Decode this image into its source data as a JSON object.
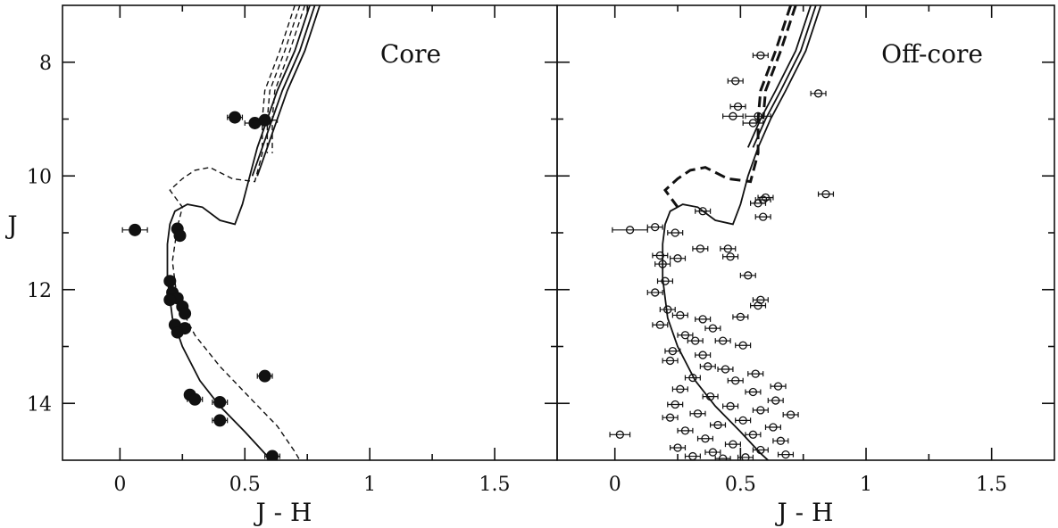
{
  "figure": {
    "y_axis_label": "J",
    "x_axis_label": "J - H",
    "x_ticks": [
      "0",
      "0.5",
      "1",
      "1.5"
    ],
    "y_ticks": [
      "8",
      "10",
      "12",
      "14"
    ]
  },
  "chart_data": [
    {
      "type": "scatter",
      "title": "Core",
      "xlabel": "J - H",
      "ylabel": "J",
      "xlim": [
        -0.23,
        1.75
      ],
      "ylim": [
        15,
        7
      ],
      "y_inverted": true,
      "grid": false,
      "marker": "filled-circle",
      "points": [
        {
          "x": 0.46,
          "y": 8.97,
          "xerr": 0.03
        },
        {
          "x": 0.54,
          "y": 9.07,
          "xerr": 0.04
        },
        {
          "x": 0.58,
          "y": 9.02,
          "xerr": 0.05
        },
        {
          "x": 0.06,
          "y": 10.95,
          "xerr": 0.05
        },
        {
          "x": 0.23,
          "y": 10.93,
          "xerr": 0.02
        },
        {
          "x": 0.24,
          "y": 11.05,
          "xerr": 0.02
        },
        {
          "x": 0.2,
          "y": 11.85,
          "xerr": 0.02
        },
        {
          "x": 0.21,
          "y": 12.05,
          "xerr": 0.02
        },
        {
          "x": 0.23,
          "y": 12.15,
          "xerr": 0.02
        },
        {
          "x": 0.2,
          "y": 12.18,
          "xerr": 0.02
        },
        {
          "x": 0.25,
          "y": 12.3,
          "xerr": 0.02
        },
        {
          "x": 0.26,
          "y": 12.42,
          "xerr": 0.02
        },
        {
          "x": 0.22,
          "y": 12.62,
          "xerr": 0.02
        },
        {
          "x": 0.26,
          "y": 12.68,
          "xerr": 0.02
        },
        {
          "x": 0.23,
          "y": 12.75,
          "xerr": 0.02
        },
        {
          "x": 0.58,
          "y": 13.52,
          "xerr": 0.03
        },
        {
          "x": 0.28,
          "y": 13.85,
          "xerr": 0.02
        },
        {
          "x": 0.3,
          "y": 13.93,
          "xerr": 0.03
        },
        {
          "x": 0.4,
          "y": 13.98,
          "xerr": 0.03
        },
        {
          "x": 0.4,
          "y": 14.3,
          "xerr": 0.03
        },
        {
          "x": 0.61,
          "y": 14.93,
          "xerr": 0.03
        }
      ],
      "isochrones": {
        "solid": [
          [
            [
              0.76,
              7.0
            ],
            [
              0.7,
              7.8
            ],
            [
              0.63,
              8.5
            ],
            [
              0.59,
              9.0
            ],
            [
              0.55,
              9.5
            ],
            [
              0.52,
              10.0
            ],
            [
              0.49,
              10.5
            ],
            [
              0.46,
              10.85
            ],
            [
              0.4,
              10.78
            ],
            [
              0.33,
              10.55
            ],
            [
              0.27,
              10.5
            ],
            [
              0.22,
              10.62
            ],
            [
              0.2,
              10.85
            ],
            [
              0.19,
              11.2
            ],
            [
              0.19,
              11.8
            ],
            [
              0.21,
              12.5
            ],
            [
              0.25,
              13.0
            ],
            [
              0.32,
              13.6
            ],
            [
              0.4,
              14.05
            ],
            [
              0.5,
              14.5
            ],
            [
              0.58,
              14.88
            ],
            [
              0.61,
              15.0
            ]
          ],
          [
            [
              0.78,
              7.0
            ],
            [
              0.72,
              7.8
            ],
            [
              0.65,
              8.5
            ],
            [
              0.61,
              9.0
            ],
            [
              0.57,
              9.5
            ],
            [
              0.53,
              10.0
            ]
          ],
          [
            [
              0.8,
              7.0
            ],
            [
              0.74,
              7.8
            ],
            [
              0.67,
              8.5
            ],
            [
              0.63,
              9.0
            ],
            [
              0.59,
              9.5
            ],
            [
              0.55,
              10.0
            ]
          ]
        ],
        "dashed": [
          [
            [
              0.7,
              7.0
            ],
            [
              0.64,
              7.8
            ],
            [
              0.58,
              8.5
            ],
            [
              0.57,
              9.0
            ],
            [
              0.57,
              9.6
            ],
            [
              0.54,
              10.1
            ],
            [
              0.45,
              10.05
            ],
            [
              0.36,
              9.85
            ],
            [
              0.3,
              9.9
            ],
            [
              0.25,
              10.05
            ],
            [
              0.2,
              10.25
            ],
            [
              0.25,
              10.55
            ],
            [
              0.23,
              10.9
            ],
            [
              0.21,
              11.5
            ],
            [
              0.23,
              12.2
            ],
            [
              0.3,
              12.8
            ],
            [
              0.4,
              13.35
            ],
            [
              0.52,
              13.9
            ],
            [
              0.63,
              14.4
            ],
            [
              0.7,
              14.85
            ],
            [
              0.72,
              15.0
            ]
          ],
          [
            [
              0.72,
              7.0
            ],
            [
              0.66,
              7.8
            ],
            [
              0.6,
              8.5
            ],
            [
              0.59,
              9.0
            ],
            [
              0.59,
              9.6
            ]
          ],
          [
            [
              0.74,
              7.0
            ],
            [
              0.68,
              7.8
            ],
            [
              0.62,
              8.5
            ],
            [
              0.61,
              9.0
            ],
            [
              0.61,
              9.6
            ]
          ]
        ]
      }
    },
    {
      "type": "scatter",
      "title": "Off-core",
      "xlabel": "J - H",
      "ylabel": "J",
      "xlim": [
        -0.23,
        1.75
      ],
      "ylim": [
        15,
        7
      ],
      "y_inverted": true,
      "grid": false,
      "marker": "open-circle",
      "points": [
        {
          "x": 0.58,
          "y": 7.88,
          "xerr": 0.03
        },
        {
          "x": 0.48,
          "y": 8.33,
          "xerr": 0.03
        },
        {
          "x": 0.81,
          "y": 8.55,
          "xerr": 0.03
        },
        {
          "x": 0.49,
          "y": 8.78,
          "xerr": 0.03
        },
        {
          "x": 0.47,
          "y": 8.95,
          "xerr": 0.04
        },
        {
          "x": 0.57,
          "y": 8.95,
          "xerr": 0.05
        },
        {
          "x": 0.55,
          "y": 9.07,
          "xerr": 0.04
        },
        {
          "x": 0.84,
          "y": 10.32,
          "xerr": 0.03
        },
        {
          "x": 0.6,
          "y": 10.38,
          "xerr": 0.03
        },
        {
          "x": 0.59,
          "y": 10.42,
          "xerr": 0.03
        },
        {
          "x": 0.57,
          "y": 10.48,
          "xerr": 0.03
        },
        {
          "x": 0.35,
          "y": 10.62,
          "xerr": 0.03
        },
        {
          "x": 0.59,
          "y": 10.72,
          "xerr": 0.03
        },
        {
          "x": 0.06,
          "y": 10.95,
          "xerr": 0.07
        },
        {
          "x": 0.16,
          "y": 10.9,
          "xerr": 0.03
        },
        {
          "x": 0.24,
          "y": 11.0,
          "xerr": 0.03
        },
        {
          "x": 0.34,
          "y": 11.28,
          "xerr": 0.03
        },
        {
          "x": 0.45,
          "y": 11.28,
          "xerr": 0.03
        },
        {
          "x": 0.46,
          "y": 11.42,
          "xerr": 0.03
        },
        {
          "x": 0.18,
          "y": 11.4,
          "xerr": 0.03
        },
        {
          "x": 0.25,
          "y": 11.45,
          "xerr": 0.03
        },
        {
          "x": 0.19,
          "y": 11.55,
          "xerr": 0.03
        },
        {
          "x": 0.53,
          "y": 11.75,
          "xerr": 0.03
        },
        {
          "x": 0.2,
          "y": 11.85,
          "xerr": 0.03
        },
        {
          "x": 0.16,
          "y": 12.05,
          "xerr": 0.03
        },
        {
          "x": 0.58,
          "y": 12.18,
          "xerr": 0.03
        },
        {
          "x": 0.57,
          "y": 12.28,
          "xerr": 0.03
        },
        {
          "x": 0.21,
          "y": 12.35,
          "xerr": 0.03
        },
        {
          "x": 0.26,
          "y": 12.45,
          "xerr": 0.03
        },
        {
          "x": 0.5,
          "y": 12.48,
          "xerr": 0.03
        },
        {
          "x": 0.35,
          "y": 12.52,
          "xerr": 0.03
        },
        {
          "x": 0.18,
          "y": 12.62,
          "xerr": 0.03
        },
        {
          "x": 0.39,
          "y": 12.68,
          "xerr": 0.03
        },
        {
          "x": 0.28,
          "y": 12.8,
          "xerr": 0.03
        },
        {
          "x": 0.32,
          "y": 12.9,
          "xerr": 0.03
        },
        {
          "x": 0.43,
          "y": 12.9,
          "xerr": 0.03
        },
        {
          "x": 0.51,
          "y": 12.98,
          "xerr": 0.03
        },
        {
          "x": 0.23,
          "y": 13.08,
          "xerr": 0.03
        },
        {
          "x": 0.35,
          "y": 13.15,
          "xerr": 0.03
        },
        {
          "x": 0.22,
          "y": 13.25,
          "xerr": 0.03
        },
        {
          "x": 0.37,
          "y": 13.35,
          "xerr": 0.03
        },
        {
          "x": 0.44,
          "y": 13.4,
          "xerr": 0.03
        },
        {
          "x": 0.56,
          "y": 13.48,
          "xerr": 0.03
        },
        {
          "x": 0.31,
          "y": 13.55,
          "xerr": 0.03
        },
        {
          "x": 0.48,
          "y": 13.6,
          "xerr": 0.03
        },
        {
          "x": 0.65,
          "y": 13.7,
          "xerr": 0.03
        },
        {
          "x": 0.26,
          "y": 13.75,
          "xerr": 0.03
        },
        {
          "x": 0.55,
          "y": 13.8,
          "xerr": 0.03
        },
        {
          "x": 0.38,
          "y": 13.88,
          "xerr": 0.03
        },
        {
          "x": 0.64,
          "y": 13.95,
          "xerr": 0.03
        },
        {
          "x": 0.24,
          "y": 14.02,
          "xerr": 0.03
        },
        {
          "x": 0.46,
          "y": 14.05,
          "xerr": 0.03
        },
        {
          "x": 0.58,
          "y": 14.12,
          "xerr": 0.03
        },
        {
          "x": 0.33,
          "y": 14.18,
          "xerr": 0.03
        },
        {
          "x": 0.22,
          "y": 14.25,
          "xerr": 0.03
        },
        {
          "x": 0.7,
          "y": 14.2,
          "xerr": 0.03
        },
        {
          "x": 0.51,
          "y": 14.3,
          "xerr": 0.03
        },
        {
          "x": 0.41,
          "y": 14.38,
          "xerr": 0.03
        },
        {
          "x": 0.63,
          "y": 14.42,
          "xerr": 0.03
        },
        {
          "x": 0.28,
          "y": 14.48,
          "xerr": 0.03
        },
        {
          "x": 0.02,
          "y": 14.55,
          "xerr": 0.04
        },
        {
          "x": 0.55,
          "y": 14.55,
          "xerr": 0.03
        },
        {
          "x": 0.36,
          "y": 14.62,
          "xerr": 0.03
        },
        {
          "x": 0.66,
          "y": 14.66,
          "xerr": 0.03
        },
        {
          "x": 0.47,
          "y": 14.72,
          "xerr": 0.03
        },
        {
          "x": 0.25,
          "y": 14.78,
          "xerr": 0.03
        },
        {
          "x": 0.58,
          "y": 14.82,
          "xerr": 0.03
        },
        {
          "x": 0.39,
          "y": 14.86,
          "xerr": 0.03
        },
        {
          "x": 0.68,
          "y": 14.9,
          "xerr": 0.03
        },
        {
          "x": 0.31,
          "y": 14.93,
          "xerr": 0.03
        },
        {
          "x": 0.52,
          "y": 14.95,
          "xerr": 0.03
        },
        {
          "x": 0.43,
          "y": 14.97,
          "xerr": 0.03
        }
      ],
      "isochrones": {
        "solid": [
          [
            [
              0.82,
              7.0
            ],
            [
              0.76,
              7.8
            ],
            [
              0.68,
              8.5
            ],
            [
              0.62,
              9.0
            ],
            [
              0.57,
              9.5
            ],
            [
              0.53,
              10.0
            ],
            [
              0.5,
              10.5
            ],
            [
              0.47,
              10.85
            ],
            [
              0.4,
              10.78
            ],
            [
              0.33,
              10.55
            ],
            [
              0.27,
              10.5
            ],
            [
              0.22,
              10.62
            ],
            [
              0.2,
              10.85
            ],
            [
              0.19,
              11.2
            ],
            [
              0.19,
              11.8
            ],
            [
              0.21,
              12.5
            ],
            [
              0.25,
              13.0
            ],
            [
              0.32,
              13.6
            ],
            [
              0.4,
              14.05
            ],
            [
              0.5,
              14.5
            ],
            [
              0.58,
              14.88
            ],
            [
              0.61,
              15.0
            ]
          ],
          [
            [
              0.8,
              7.0
            ],
            [
              0.74,
              7.8
            ],
            [
              0.66,
              8.5
            ],
            [
              0.6,
              9.0
            ],
            [
              0.55,
              9.5
            ]
          ],
          [
            [
              0.78,
              7.0
            ],
            [
              0.72,
              7.8
            ],
            [
              0.64,
              8.5
            ],
            [
              0.58,
              9.0
            ],
            [
              0.53,
              9.5
            ]
          ]
        ],
        "dashed": [
          [
            [
              0.7,
              7.0
            ],
            [
              0.64,
              7.8
            ],
            [
              0.58,
              8.5
            ],
            [
              0.57,
              9.0
            ],
            [
              0.57,
              9.6
            ],
            [
              0.54,
              10.1
            ],
            [
              0.45,
              10.05
            ],
            [
              0.36,
              9.85
            ],
            [
              0.3,
              9.9
            ],
            [
              0.25,
              10.05
            ],
            [
              0.2,
              10.25
            ],
            [
              0.25,
              10.55
            ]
          ],
          [
            [
              0.72,
              7.0
            ],
            [
              0.66,
              7.8
            ],
            [
              0.6,
              8.5
            ],
            [
              0.59,
              9.0
            ]
          ]
        ]
      }
    }
  ]
}
